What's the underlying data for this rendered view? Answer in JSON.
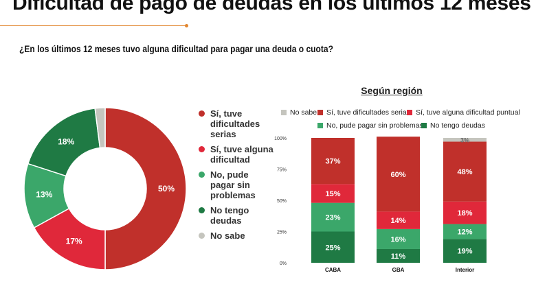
{
  "title": "Dificultad de pago de deudas en los últimos 12 meses",
  "question": "¿En los últimos 12 meses tuvo alguna dificultad para pagar una deuda o cuota?",
  "chart_data": [
    {
      "type": "pie",
      "donut": true,
      "legend_position": "right",
      "categories": [
        "Sí, tuve dificultades serias",
        "Sí, tuve alguna dificultad",
        "No, pude pagar sin problemas",
        "No tengo deudas",
        "No sabe"
      ],
      "values": [
        50,
        17,
        13,
        18,
        2
      ],
      "labels": [
        "50%",
        "17%",
        "13%",
        "18%",
        ""
      ],
      "colors": [
        "#c0302b",
        "#e0283a",
        "#3ba76a",
        "#1f7a44",
        "#c5c5be"
      ]
    },
    {
      "type": "bar",
      "stacked": true,
      "title": "Según región",
      "legend_position": "top",
      "categories": [
        "CABA",
        "GBA",
        "Interior"
      ],
      "yticks": [
        "0%",
        "25%",
        "50%",
        "75%",
        "100%"
      ],
      "ylim": [
        0,
        100
      ],
      "series": [
        {
          "name": "No tengo deudas",
          "color": "#1f7a44",
          "values": [
            25,
            11,
            19
          ],
          "labels": [
            "25%",
            "11%",
            "19%"
          ]
        },
        {
          "name": "No, pude pagar sin problemas",
          "color": "#3ba76a",
          "values": [
            23,
            16,
            12
          ],
          "labels": [
            "23%",
            "16%",
            "12%"
          ]
        },
        {
          "name": "Sí, tuve alguna dificultad puntual",
          "color": "#e0283a",
          "values": [
            15,
            14,
            18
          ],
          "labels": [
            "15%",
            "14%",
            "18%"
          ]
        },
        {
          "name": "Sí, tuve dificultades serias",
          "color": "#c0302b",
          "values": [
            37,
            60,
            48
          ],
          "labels": [
            "37%",
            "60%",
            "48%"
          ]
        },
        {
          "name": "No sabe",
          "color": "#c5c5be",
          "values": [
            0,
            0,
            3
          ],
          "labels": [
            "",
            "",
            "3%"
          ]
        }
      ],
      "legend_order": [
        "No sabe",
        "Sí, tuve dificultades serias",
        "Sí, tuve alguna dificultad puntual",
        "No, pude pagar sin problemas",
        "No tengo deudas"
      ]
    }
  ]
}
